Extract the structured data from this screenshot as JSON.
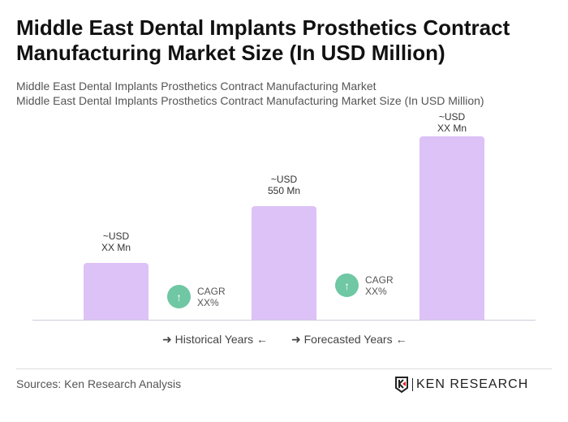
{
  "title": "Middle East Dental Implants Prosthetics Contract Manufacturing Market Size (In USD Million)",
  "subtitle1": "Middle East Dental Implants Prosthetics Contract Manufacturing Market",
  "subtitle2": "Middle East Dental Implants Prosthetics Contract Manufacturing Market Size (In USD Million)",
  "chart_data": {
    "type": "bar",
    "categories": [
      "",
      "",
      ""
    ],
    "values": [
      null,
      550,
      null
    ],
    "labels": [
      {
        "l1": "~USD",
        "l2": "XX Mn"
      },
      {
        "l1": "~USD",
        "l2": "550 Mn"
      },
      {
        "l1": "~USD",
        "l2": "XX Mn"
      }
    ],
    "bar_color": "#dcc2f6",
    "cagr": [
      {
        "label": "CAGR",
        "value": "XX%"
      },
      {
        "label": "CAGR",
        "value": "XX%"
      }
    ],
    "legend": {
      "historical": "Historical Years",
      "forecasted": "Forecasted Years"
    },
    "grid": false
  },
  "sources": "Sources: Ken Research Analysis",
  "logo": "KEN RESEARCH",
  "accent": "#6fc7a3"
}
